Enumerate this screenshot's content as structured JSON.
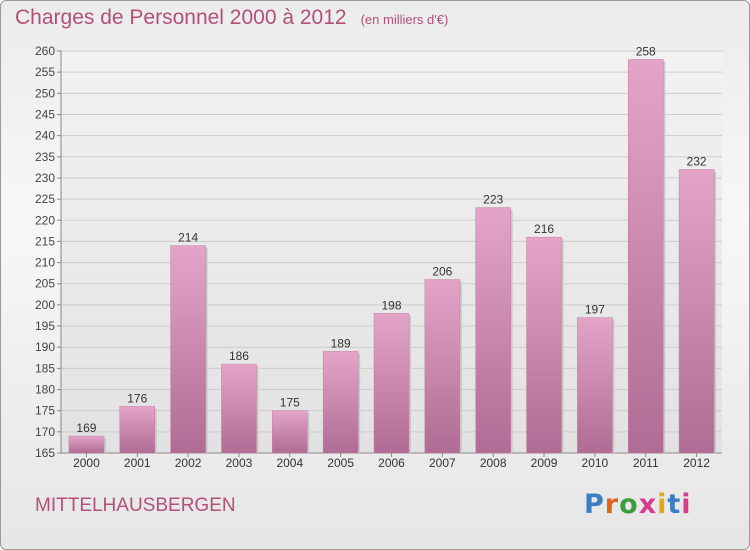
{
  "title": "Charges de Personnel 2000 à 2012",
  "subtitle": "(en milliers d'€)",
  "commune": "MITTELHAUSBERGEN",
  "logo": {
    "text": "Proxiti",
    "letter_colors": [
      "#3a7fc1",
      "#e0661c",
      "#3a9e3a",
      "#d63c8f",
      "#e0a81c",
      "#3a7fc1",
      "#d63c8f"
    ]
  },
  "colors": {
    "bar": "#d68fb8",
    "bar_dark": "#b86e98",
    "grid": "#cccccc",
    "text": "#b2507a"
  },
  "chart_data": {
    "type": "bar",
    "title": "Charges de Personnel 2000 à 2012",
    "subtitle": "(en milliers d'€)",
    "categories": [
      "2000",
      "2001",
      "2002",
      "2003",
      "2004",
      "2005",
      "2006",
      "2007",
      "2008",
      "2009",
      "2010",
      "2011",
      "2012"
    ],
    "values": [
      169,
      176,
      214,
      186,
      175,
      189,
      198,
      206,
      223,
      216,
      197,
      258,
      232
    ],
    "ylim": [
      165,
      260
    ],
    "yticks": [
      165,
      170,
      175,
      180,
      185,
      190,
      195,
      200,
      205,
      210,
      215,
      220,
      225,
      230,
      235,
      240,
      245,
      250,
      255,
      260
    ],
    "grid": true,
    "data_labels": true
  }
}
